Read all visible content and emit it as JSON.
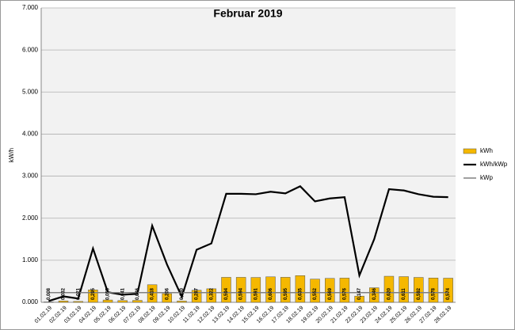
{
  "chart_data": {
    "type": "bar",
    "title": "Februar 2019",
    "y_label": "kW/h",
    "categories": [
      "01.02.19",
      "02.02.19",
      "03.02.19",
      "04.02.19",
      "05.02.19",
      "06.02.19",
      "07.02.19",
      "08.02.19",
      "09.02.19",
      "10.02.19",
      "11.02.19",
      "12.02.19",
      "13.02.19",
      "14.02.19",
      "15.02.19",
      "16.02.19",
      "17.02.19",
      "18.02.19",
      "19.02.19",
      "20.02.19",
      "21.02.19",
      "22.02.19",
      "23.02.19",
      "24.02.19",
      "25.02.19",
      "26.02.19",
      "27.02.19",
      "28.02.19"
    ],
    "series": [
      {
        "name": "kWh",
        "type": "bar",
        "color": "#f5b800",
        "values": [
          0.008,
          0.032,
          0.021,
          0.295,
          0.055,
          0.041,
          0.046,
          0.418,
          0.206,
          0.03,
          0.287,
          0.322,
          0.594,
          0.594,
          0.591,
          0.606,
          0.595,
          0.635,
          0.552,
          0.569,
          0.576,
          0.147,
          0.346,
          0.62,
          0.611,
          0.592,
          0.578,
          0.574
        ],
        "value_labels": [
          "0,008",
          "0,032",
          "0,021",
          "0,295",
          "0,055",
          "0,041",
          "0,046",
          "0,418",
          "0,206",
          "0,030",
          "0,287",
          "0,322",
          "0,594",
          "0,594",
          "0,591",
          "0,606",
          "0,595",
          "0,635",
          "0,552",
          "0,569",
          "0,576",
          "0,147",
          "0,346",
          "0,620",
          "0,611",
          "0,592",
          "0,578",
          "0,574"
        ]
      },
      {
        "name": "kWh/kWp",
        "type": "line",
        "color": "#000000",
        "values": [
          0.03,
          0.14,
          0.09,
          1.28,
          0.24,
          0.18,
          0.2,
          1.82,
          0.9,
          0.13,
          1.25,
          1.4,
          2.58,
          2.58,
          2.57,
          2.63,
          2.59,
          2.76,
          2.4,
          2.47,
          2.5,
          0.64,
          1.5,
          2.69,
          2.66,
          2.57,
          2.51,
          2.5
        ]
      },
      {
        "name": "kWp",
        "type": "line",
        "color": "#808080",
        "values": [
          0.23,
          0.23,
          0.23,
          0.23,
          0.23,
          0.23,
          0.23,
          0.23,
          0.23,
          0.23,
          0.23,
          0.23,
          0.23,
          0.23,
          0.23,
          0.23,
          0.23,
          0.23,
          0.23,
          0.23,
          0.23,
          0.23,
          0.23,
          0.23,
          0.23,
          0.23,
          0.23,
          0.23
        ]
      }
    ],
    "ylim": [
      0,
      7
    ],
    "yticks": [
      {
        "value": 0,
        "label": "0.000"
      },
      {
        "value": 1,
        "label": "1.000"
      },
      {
        "value": 2,
        "label": "2.000"
      },
      {
        "value": 3,
        "label": "3.000"
      },
      {
        "value": 4,
        "label": "4.000"
      },
      {
        "value": 5,
        "label": "5.000"
      },
      {
        "value": 6,
        "label": "6.000"
      },
      {
        "value": 7,
        "label": "7.000"
      }
    ],
    "grid": true
  }
}
